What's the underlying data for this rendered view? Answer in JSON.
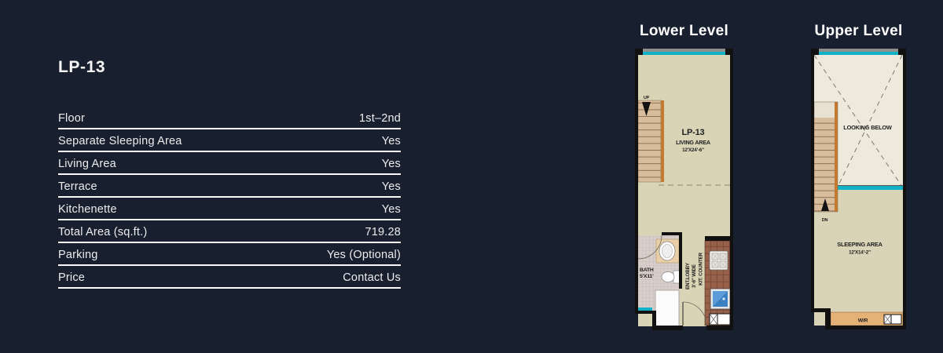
{
  "window": {
    "background": "#182030"
  },
  "left_panel": {
    "title": "LP-13",
    "specs": [
      {
        "label": "Floor",
        "value": "1st–2nd"
      },
      {
        "label": "Separate Sleeping Area",
        "value": "Yes"
      },
      {
        "label": "Living Area",
        "value": "Yes"
      },
      {
        "label": "Terrace",
        "value": "Yes"
      },
      {
        "label": "Kitchenette",
        "value": "Yes"
      },
      {
        "label": "Total Area (sq.ft.)",
        "value": "719.28"
      },
      {
        "label": "Parking",
        "value": "Yes (Optional)"
      },
      {
        "label": "Price",
        "value": "Contact Us"
      }
    ]
  },
  "floorplans": {
    "lower": {
      "heading": "Lower Level",
      "unit_label": "LP-13",
      "room_label": "LIVING AREA",
      "room_dim": "12'X24'-6\"",
      "stair_label": "UP",
      "bath_label": "BATH",
      "bath_dim": "5'X11'",
      "lobby_label": "ENT.LOBBY",
      "lobby_dim": "3'-6\" WIDE",
      "kitchen_label": "KIT. COUNTER"
    },
    "upper": {
      "heading": "Upper Level",
      "void_label": "LOOKING BELOW",
      "stair_label": "DN",
      "room_label": "SLEEPING AREA",
      "room_dim": "12'X14'-2\"",
      "wr_label": "W/R"
    }
  },
  "colors": {
    "accent_cyan": "#12b2c6",
    "unit_label_blue": "#2424cd",
    "wall_black": "#111111",
    "floor_beige": "#d9d4b6",
    "void_cream": "#edeadd",
    "stair_tan": "#d7bd9c",
    "stair_stripe_orange": "#c57b2f",
    "kitchen_brown": "#935c46",
    "wr_tan": "#e4b176"
  }
}
